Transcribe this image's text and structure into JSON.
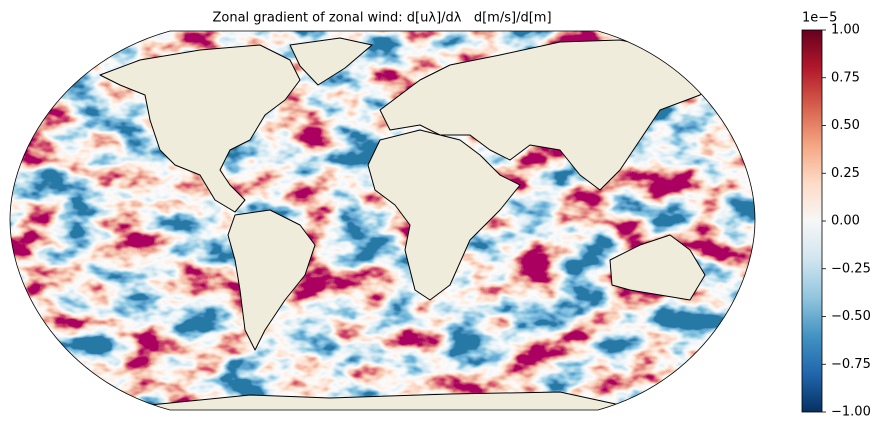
{
  "chart_data": {
    "type": "map",
    "title": "Zonal gradient of zonal wind: d[uλ]/dλ   d[m/s]/d[m]",
    "colorbar": {
      "offset_label": "1e−5",
      "lim": [
        -1,
        1
      ],
      "ticks": [
        {
          "value": -1,
          "label": "−1.00"
        },
        {
          "value": -0.75,
          "label": "−0.75"
        },
        {
          "value": -0.5,
          "label": "−0.50"
        },
        {
          "value": -0.25,
          "label": "−0.25"
        },
        {
          "value": 0,
          "label": "0.00"
        },
        {
          "value": 0.25,
          "label": "0.25"
        },
        {
          "value": 0.5,
          "label": "0.50"
        },
        {
          "value": 0.75,
          "label": "0.75"
        },
        {
          "value": 1,
          "label": "1.00"
        }
      ],
      "colors": [
        "#053061",
        "#2166ac",
        "#4393c3",
        "#92c5de",
        "#d1e5f0",
        "#f7f7f7",
        "#fddbc7",
        "#f4a582",
        "#d6604d",
        "#b2182b",
        "#67001f"
      ]
    }
  }
}
